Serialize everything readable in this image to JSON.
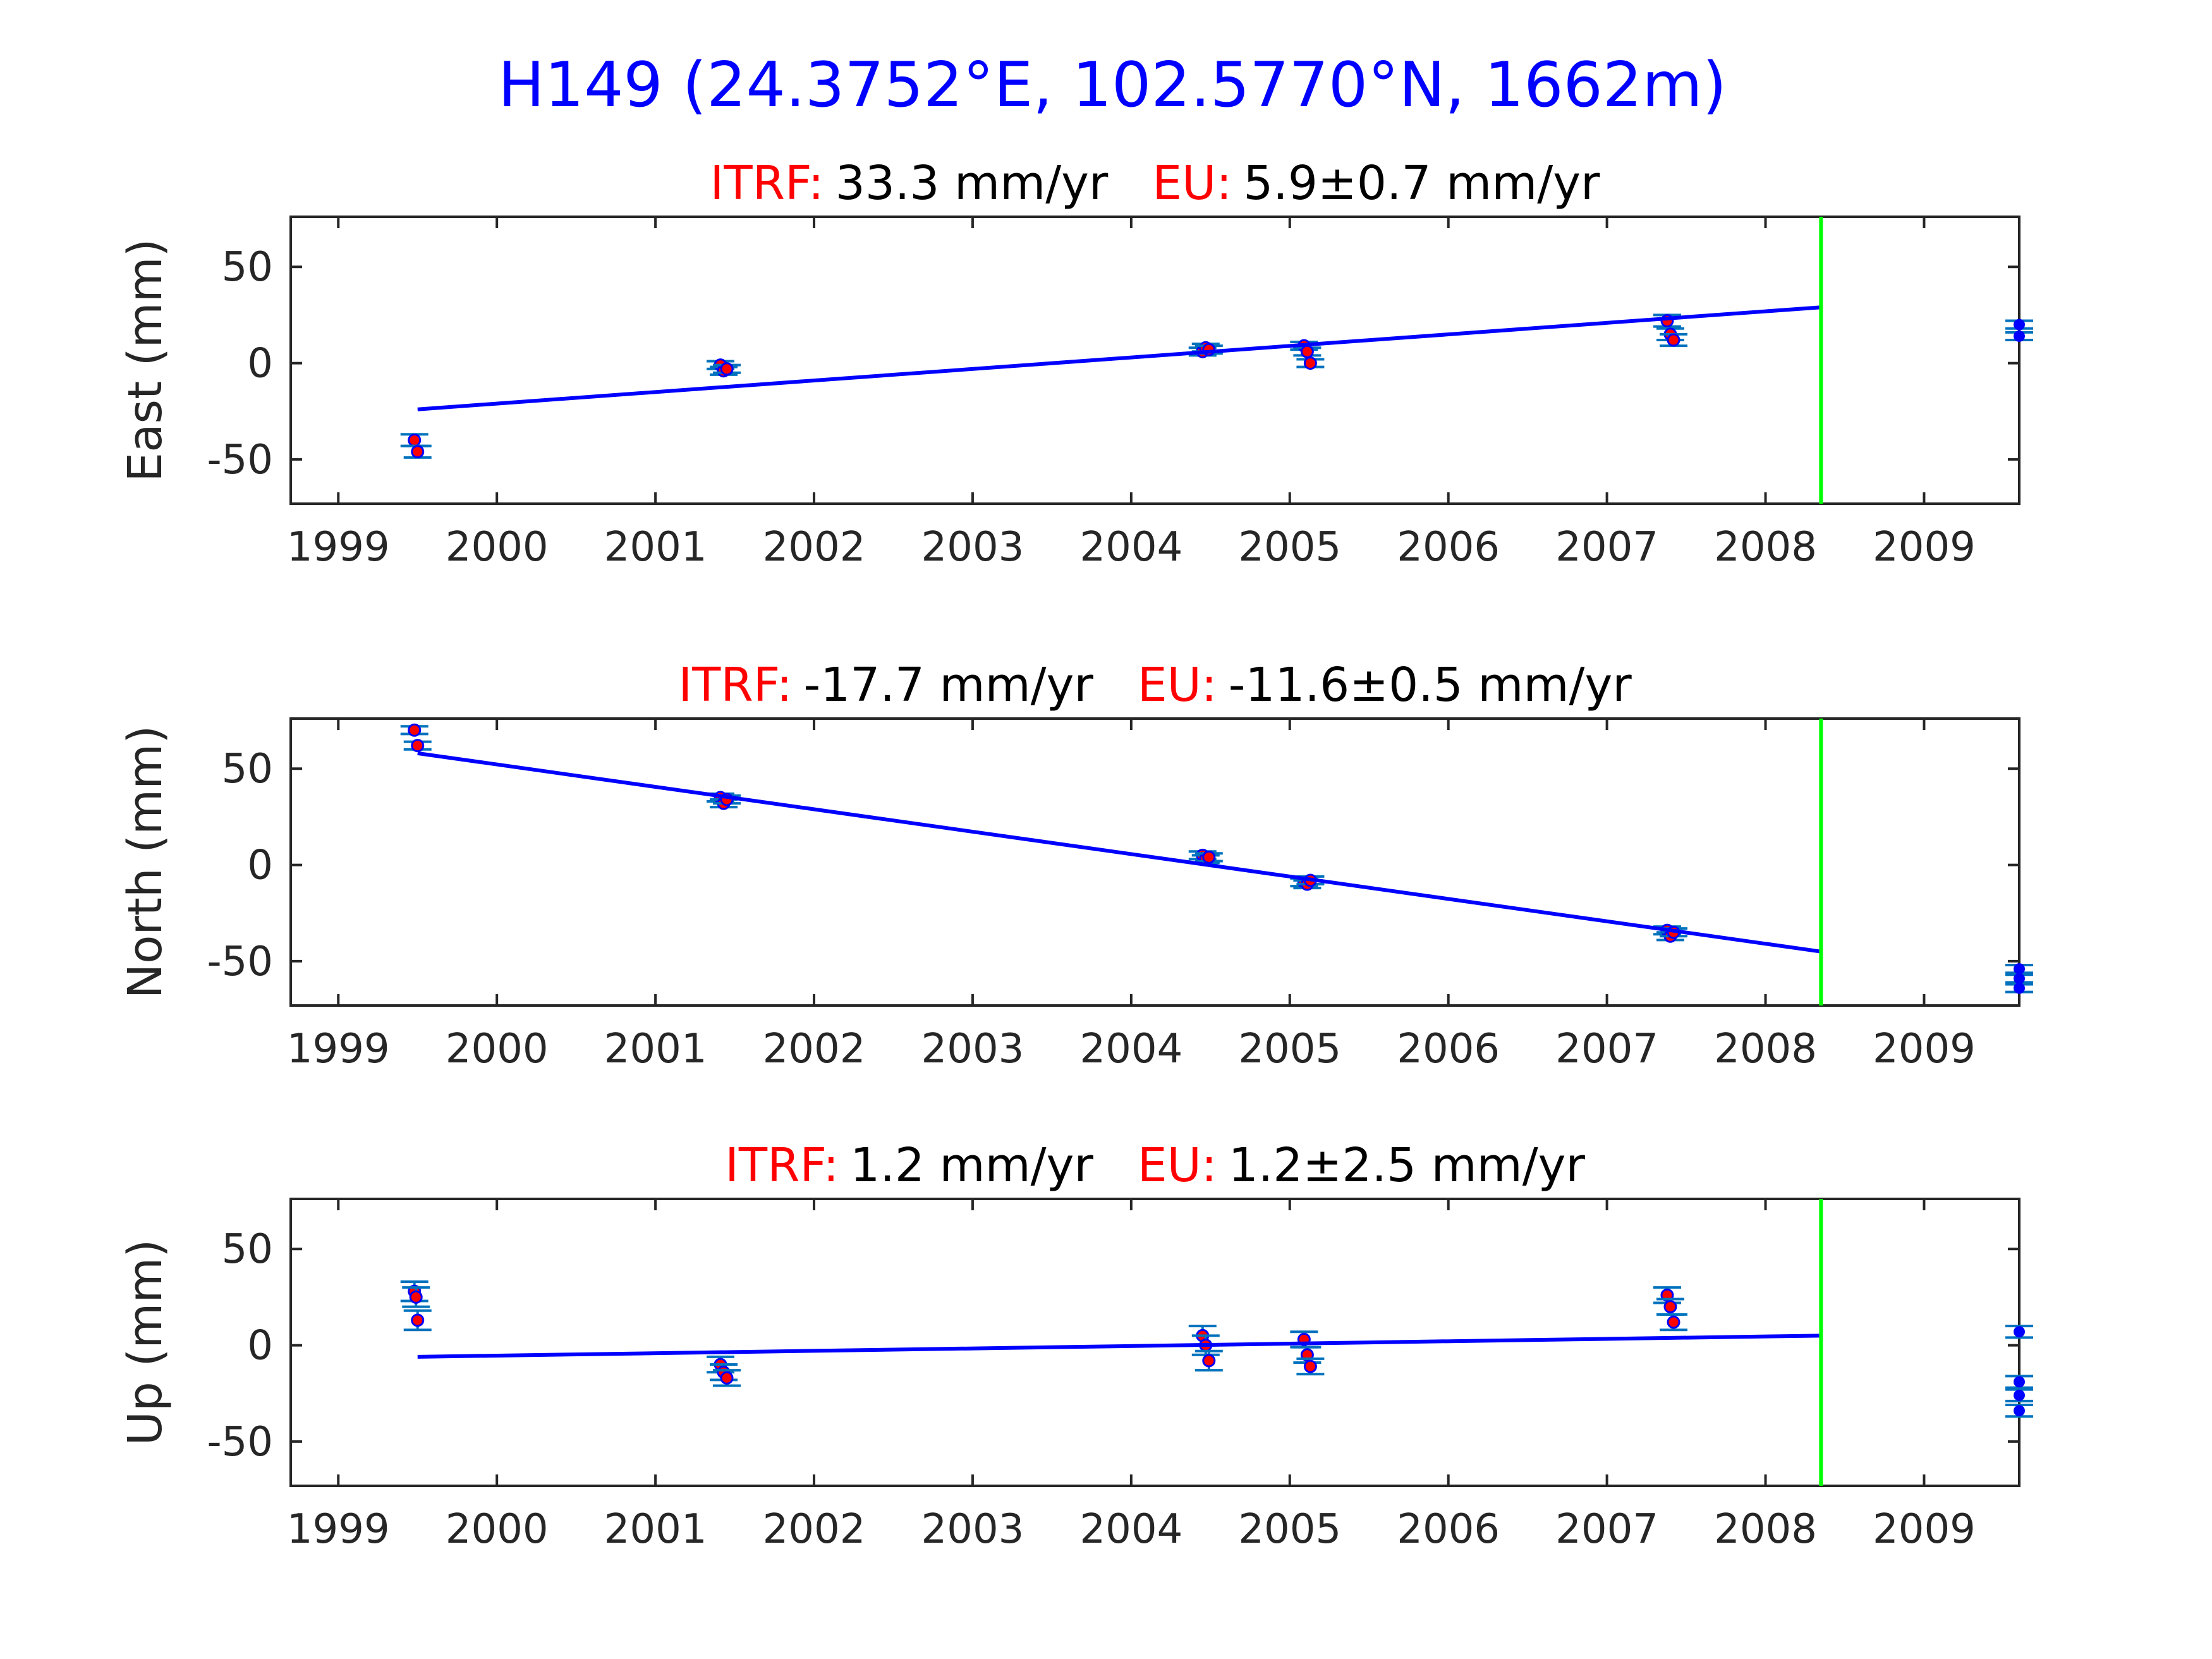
{
  "figure": {
    "title": "H149 (24.3752°E, 102.5770°N, 1662m)",
    "title_color": "#0000ff",
    "label_color": "#ff0000",
    "text_color": "#000000",
    "line_color": "#0000ff",
    "marker_color": "#ff0000",
    "errorbar_color": "#0072bd",
    "vline_color": "#00ff00",
    "background": "#ffffff"
  },
  "chart_data": [
    {
      "type": "scatter",
      "ylabel": "East (mm)",
      "subtitle": {
        "itrf_label": "ITRF:",
        "itrf_value": "33.3 mm/yr",
        "eu_label": "EU:",
        "eu_value": "5.9±0.7 mm/yr"
      },
      "xlim": [
        1998.7,
        2009.6
      ],
      "ylim": [
        -73,
        76
      ],
      "xticks": [
        "1999",
        "2000",
        "2001",
        "2002",
        "2003",
        "2004",
        "2005",
        "2006",
        "2007",
        "2008",
        "2009"
      ],
      "yticks": [
        "50",
        "0",
        "-50"
      ],
      "grid": false,
      "trend": {
        "x": [
          1999.5,
          2008.35
        ],
        "y": [
          -24,
          29
        ]
      },
      "vline_x": 2008.35,
      "points": [
        {
          "x": 1999.48,
          "y": -40,
          "err": 3
        },
        {
          "x": 1999.5,
          "y": -46,
          "err": 3
        },
        {
          "x": 2001.41,
          "y": -1,
          "err": 2
        },
        {
          "x": 2001.43,
          "y": -4,
          "err": 2
        },
        {
          "x": 2001.45,
          "y": -3,
          "err": 2
        },
        {
          "x": 2004.45,
          "y": 6,
          "err": 2
        },
        {
          "x": 2004.47,
          "y": 8,
          "err": 2
        },
        {
          "x": 2004.49,
          "y": 7,
          "err": 2
        },
        {
          "x": 2005.09,
          "y": 9,
          "err": 2
        },
        {
          "x": 2005.11,
          "y": 6,
          "err": 2
        },
        {
          "x": 2005.13,
          "y": 0,
          "err": 2
        },
        {
          "x": 2007.38,
          "y": 22,
          "err": 3
        },
        {
          "x": 2007.4,
          "y": 15,
          "err": 3
        },
        {
          "x": 2007.42,
          "y": 12,
          "err": 3
        }
      ],
      "projected": [
        {
          "x": 2009.6,
          "y": 20,
          "err": 2
        },
        {
          "x": 2009.6,
          "y": 14,
          "err": 2
        }
      ]
    },
    {
      "type": "scatter",
      "ylabel": "North (mm)",
      "subtitle": {
        "itrf_label": "ITRF:",
        "itrf_value": "-17.7 mm/yr",
        "eu_label": "EU:",
        "eu_value": "-11.6±0.5 mm/yr"
      },
      "xlim": [
        1998.7,
        2009.6
      ],
      "ylim": [
        -73,
        76
      ],
      "xticks": [
        "1999",
        "2000",
        "2001",
        "2002",
        "2003",
        "2004",
        "2005",
        "2006",
        "2007",
        "2008",
        "2009"
      ],
      "yticks": [
        "50",
        "0",
        "-50"
      ],
      "grid": false,
      "trend": {
        "x": [
          1999.5,
          2008.35
        ],
        "y": [
          58,
          -45
        ]
      },
      "vline_x": 2008.35,
      "points": [
        {
          "x": 1999.48,
          "y": 70,
          "err": 2
        },
        {
          "x": 1999.5,
          "y": 62,
          "err": 2
        },
        {
          "x": 2001.41,
          "y": 35,
          "err": 2
        },
        {
          "x": 2001.43,
          "y": 32,
          "err": 2
        },
        {
          "x": 2001.45,
          "y": 34,
          "err": 2
        },
        {
          "x": 2004.45,
          "y": 5,
          "err": 2
        },
        {
          "x": 2004.47,
          "y": 3,
          "err": 2
        },
        {
          "x": 2004.49,
          "y": 4,
          "err": 2
        },
        {
          "x": 2005.09,
          "y": -9,
          "err": 2
        },
        {
          "x": 2005.11,
          "y": -10,
          "err": 2
        },
        {
          "x": 2005.13,
          "y": -8,
          "err": 2
        },
        {
          "x": 2007.38,
          "y": -34,
          "err": 2
        },
        {
          "x": 2007.4,
          "y": -37,
          "err": 2
        },
        {
          "x": 2007.42,
          "y": -35,
          "err": 2
        }
      ],
      "projected": [
        {
          "x": 2009.6,
          "y": -54,
          "err": 2
        },
        {
          "x": 2009.6,
          "y": -59,
          "err": 2
        },
        {
          "x": 2009.6,
          "y": -64,
          "err": 2
        }
      ]
    },
    {
      "type": "scatter",
      "ylabel": "Up (mm)",
      "subtitle": {
        "itrf_label": "ITRF:",
        "itrf_value": "1.2 mm/yr",
        "eu_label": "EU:",
        "eu_value": "1.2±2.5 mm/yr"
      },
      "xlim": [
        1998.7,
        2009.6
      ],
      "ylim": [
        -73,
        76
      ],
      "xticks": [
        "1999",
        "2000",
        "2001",
        "2002",
        "2003",
        "2004",
        "2005",
        "2006",
        "2007",
        "2008",
        "2009"
      ],
      "yticks": [
        "50",
        "0",
        "-50"
      ],
      "grid": false,
      "trend": {
        "x": [
          1999.5,
          2008.35
        ],
        "y": [
          -6,
          5
        ]
      },
      "vline_x": 2008.35,
      "points": [
        {
          "x": 1999.48,
          "y": 28,
          "err": 5
        },
        {
          "x": 1999.49,
          "y": 25,
          "err": 5
        },
        {
          "x": 1999.5,
          "y": 13,
          "err": 5
        },
        {
          "x": 2001.41,
          "y": -10,
          "err": 4
        },
        {
          "x": 2001.43,
          "y": -14,
          "err": 4
        },
        {
          "x": 2001.45,
          "y": -17,
          "err": 4
        },
        {
          "x": 2004.45,
          "y": 5,
          "err": 5
        },
        {
          "x": 2004.47,
          "y": 0,
          "err": 5
        },
        {
          "x": 2004.49,
          "y": -8,
          "err": 5
        },
        {
          "x": 2005.09,
          "y": 3,
          "err": 4
        },
        {
          "x": 2005.11,
          "y": -5,
          "err": 4
        },
        {
          "x": 2005.13,
          "y": -11,
          "err": 4
        },
        {
          "x": 2007.38,
          "y": 26,
          "err": 4
        },
        {
          "x": 2007.4,
          "y": 20,
          "err": 4
        },
        {
          "x": 2007.42,
          "y": 12,
          "err": 4
        }
      ],
      "projected": [
        {
          "x": 2009.6,
          "y": 7,
          "err": 3
        },
        {
          "x": 2009.6,
          "y": -19,
          "err": 3
        },
        {
          "x": 2009.6,
          "y": -26,
          "err": 3
        },
        {
          "x": 2009.6,
          "y": -34,
          "err": 3
        }
      ]
    }
  ]
}
